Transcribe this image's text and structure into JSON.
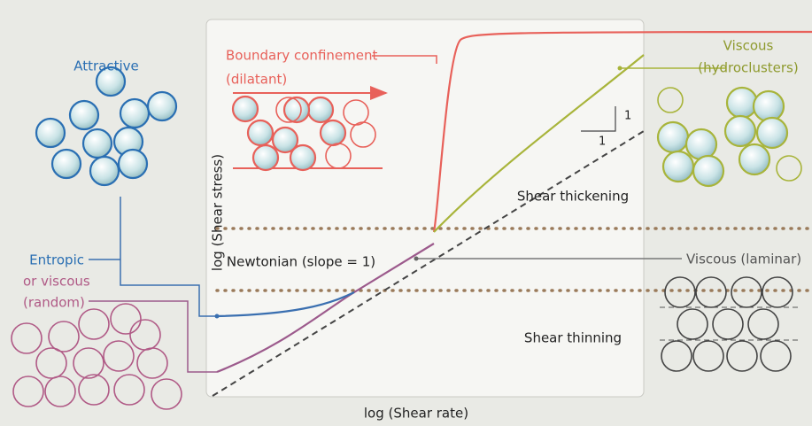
{
  "left": {
    "attractive": "Attractive",
    "entropic": [
      "Entropic",
      "or viscous",
      "(random)"
    ]
  },
  "boundary": [
    "Boundary confinement",
    "(dilatant)"
  ],
  "right": {
    "hydroclusters": [
      "Viscous",
      "(hydroclusters)"
    ],
    "laminar": "Viscous (laminar)"
  },
  "plot": {
    "y_axis_label": "log (Shear stress)",
    "x_axis_label": "log (Shear rate)",
    "regions": [
      "Shear thickening",
      "Newtonian (slope = 1)",
      "Shear thinning"
    ],
    "slope_rise": "1",
    "slope_run": "1"
  }
}
